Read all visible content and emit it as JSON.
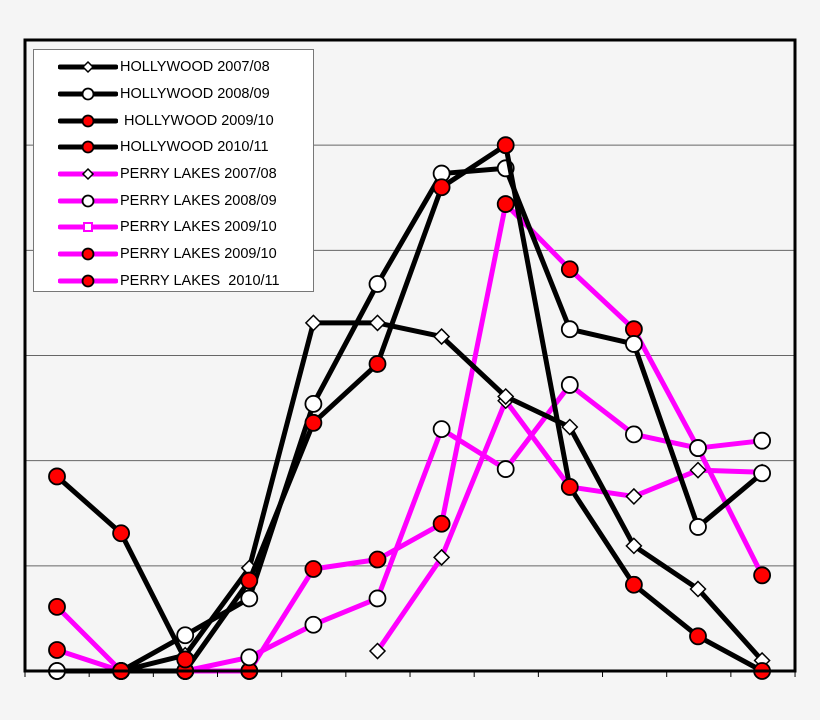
{
  "chart_data": {
    "type": "line",
    "title": "",
    "xlabel": "",
    "ylabel": "",
    "x": [
      0,
      1,
      2,
      3,
      4,
      5,
      6,
      7,
      8,
      9,
      10,
      11
    ],
    "x_tick_labels": [
      "",
      "",
      "",
      "",
      "",
      "",
      "",
      "",
      "",
      "",
      "",
      ""
    ],
    "y_tick_labels": [],
    "ylim": [
      0,
      60
    ],
    "y_gridlines": [
      10,
      20,
      30,
      40,
      50
    ],
    "grid": true,
    "legend_position": "upper-left",
    "series": [
      {
        "name": "HOLLYWOOD 2007/08",
        "color": "#000000",
        "marker": "diamond-open",
        "values": [
          0,
          0,
          1.5,
          9.8,
          33.1,
          33.1,
          31.8,
          26.1,
          23.2,
          11.9,
          7.8,
          1.0
        ]
      },
      {
        "name": "HOLLYWOOD 2008/09",
        "color": "#000000",
        "marker": "circle-open",
        "values": [
          0,
          0,
          3.4,
          6.9,
          25.4,
          36.8,
          47.3,
          47.8,
          32.5,
          31.1,
          13.7,
          18.8
        ]
      },
      {
        "name": " HOLLYWOOD 2009/10",
        "color": "#000000",
        "marker": "circle-red",
        "values": [
          null,
          0,
          0,
          8.6,
          23.6,
          29.2,
          46.0,
          50.0,
          17.5,
          8.2,
          3.3,
          0
        ]
      },
      {
        "name": "HOLLYWOOD 2010/11",
        "color": "#000000",
        "marker": "circle-red",
        "values": [
          18.5,
          13.1,
          1.1,
          null,
          null,
          null,
          null,
          null,
          null,
          null,
          null,
          null
        ]
      },
      {
        "name": "PERRY LAKES 2007/08",
        "color": "#ff00ff",
        "marker": "diamond-open",
        "values": [
          null,
          null,
          null,
          null,
          null,
          1.9,
          10.8,
          25.7,
          17.5,
          16.6,
          19.1,
          18.9
        ]
      },
      {
        "name": "PERRY LAKES 2008/09",
        "color": "#ff00ff",
        "marker": "circle-open",
        "values": [
          0,
          0,
          0,
          1.3,
          4.4,
          6.9,
          23.0,
          19.2,
          27.2,
          22.5,
          21.2,
          21.9
        ]
      },
      {
        "name": "PERRY LAKES 2009/10",
        "color": "#ff00ff",
        "marker": "square-open",
        "values": [
          null,
          null,
          null,
          null,
          null,
          null,
          null,
          null,
          null,
          null,
          null,
          null
        ]
      },
      {
        "name": "PERRY LAKES 2009/10",
        "color": "#ff00ff",
        "marker": "circle-red",
        "values": [
          2.0,
          0,
          0,
          0,
          9.7,
          10.6,
          14.0,
          44.4,
          38.2,
          32.5,
          21.2,
          9.1
        ]
      },
      {
        "name": "PERRY LAKES  2010/11",
        "color": "#ff00ff",
        "marker": "circle-red",
        "values": [
          6.1,
          0,
          0,
          0,
          null,
          null,
          null,
          null,
          null,
          null,
          null,
          null
        ]
      }
    ]
  },
  "legend": {
    "items": [
      {
        "label": "HOLLYWOOD 2007/08"
      },
      {
        "label": "HOLLYWOOD 2008/09"
      },
      {
        "label": " HOLLYWOOD 2009/10"
      },
      {
        "label": "HOLLYWOOD 2010/11"
      },
      {
        "label": "PERRY LAKES 2007/08"
      },
      {
        "label": "PERRY LAKES 2008/09"
      },
      {
        "label": "PERRY LAKES 2009/10"
      },
      {
        "label": "PERRY LAKES 2009/10"
      },
      {
        "label": "PERRY LAKES  2010/11"
      }
    ]
  },
  "colors": {
    "background": "#f5f5f5",
    "hollywood": "#000000",
    "perry_lakes": "#ff00ff",
    "marker_fill_red": "#ff0000"
  }
}
